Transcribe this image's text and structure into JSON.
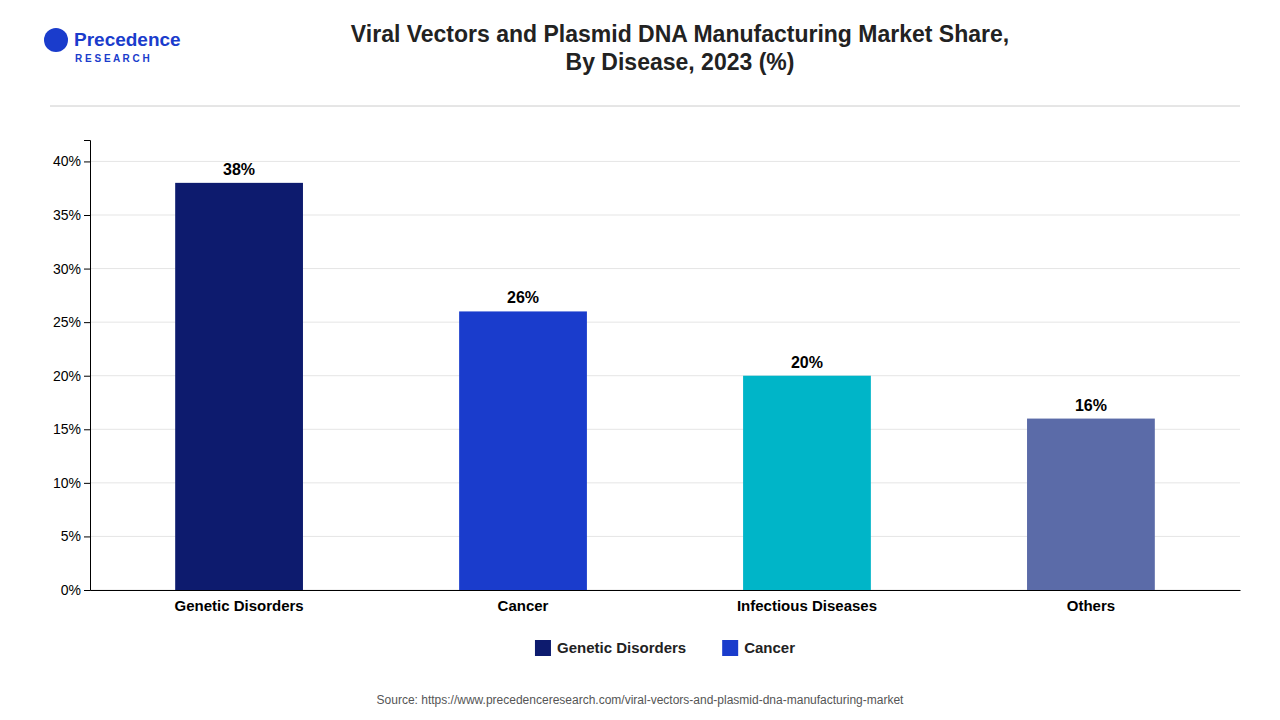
{
  "chart_data": {
    "type": "bar",
    "title": "Viral Vectors and Plasmid DNA Manufacturing Market Share,\nBy Disease, 2023 (%)",
    "categories": [
      "Genetic Disorders",
      "Cancer",
      "Infectious Diseases",
      "Others"
    ],
    "values": [
      38,
      26,
      20,
      16
    ],
    "value_labels": [
      "38%",
      "26%",
      "20%",
      "16%"
    ],
    "colors": [
      "#0d1b6e",
      "#1a3ccc",
      "#00b5c8",
      "#5b6ba8"
    ],
    "data_labels": true,
    "ylim": [
      0,
      42
    ],
    "yticks": [
      {
        "value": 0,
        "label": "0%"
      },
      {
        "value": 5,
        "label": "5%"
      },
      {
        "value": 10,
        "label": "10%"
      },
      {
        "value": 15,
        "label": "15%"
      },
      {
        "value": 20,
        "label": "20%"
      },
      {
        "value": 25,
        "label": "25%"
      },
      {
        "value": 30,
        "label": "30%"
      },
      {
        "value": 35,
        "label": "35%"
      },
      {
        "value": 40,
        "label": "40%"
      }
    ],
    "grid": true,
    "legend": "bottom",
    "legend_entries": [
      {
        "label": "Genetic Disorders",
        "color": "#0d1b6e"
      },
      {
        "label": "Cancer",
        "color": "#1a3ccc"
      }
    ],
    "annotations": [
      "Precedence",
      "R E S E A R C H"
    ],
    "source": "Source: https://www.precedenceresearch.com/viral-vectors-and-plasmid-dna-manufacturing-market"
  }
}
